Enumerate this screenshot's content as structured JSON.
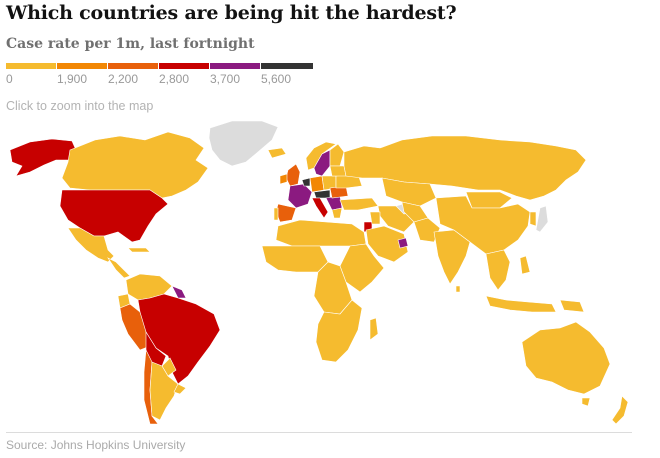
{
  "header": {
    "title": "Which countries are being hit the hardest?",
    "subtitle": "Case rate per 1m, last fortnight"
  },
  "legend": {
    "bins": [
      {
        "label": "0",
        "color": "#f5bb2f"
      },
      {
        "label": "1,900",
        "color": "#f28704"
      },
      {
        "label": "2,200",
        "color": "#e8600b"
      },
      {
        "label": "2,800",
        "color": "#c70000"
      },
      {
        "label": "3,700",
        "color": "#8b1a80"
      },
      {
        "label": "5,600",
        "color": "#333333"
      }
    ]
  },
  "hint": "Click to zoom into the map",
  "source": "Source: Johns Hopkins University",
  "colors": {
    "no_data": "#dcdcdc",
    "low": "#f5bb2f",
    "orange": "#f28704",
    "dark_orange": "#e8600b",
    "red": "#c70000",
    "purple": "#8b1a80",
    "black": "#333333"
  }
}
